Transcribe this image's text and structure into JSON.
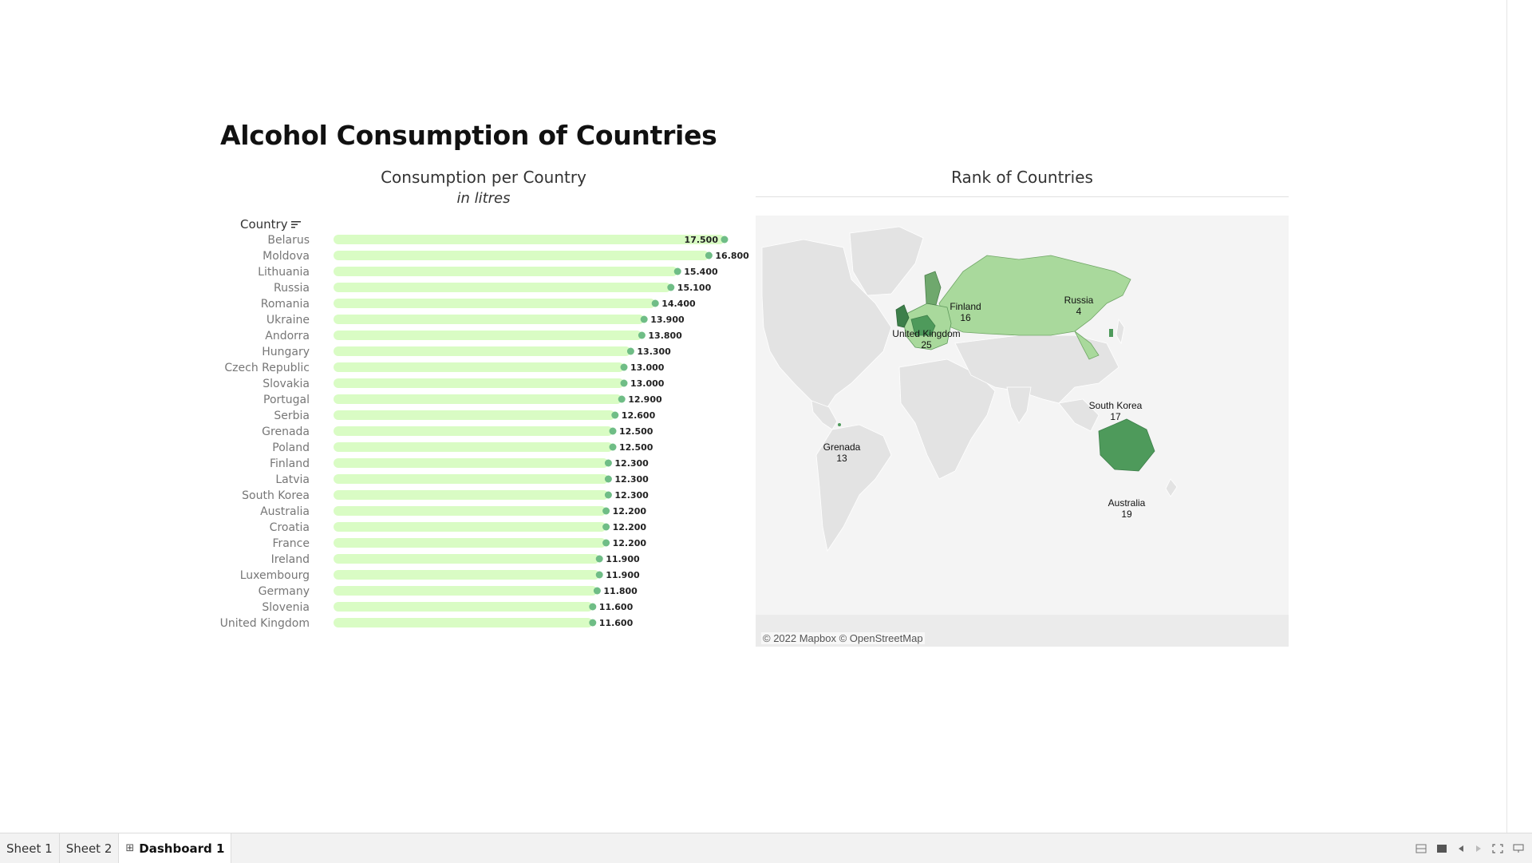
{
  "dashboard": {
    "title": "Alcohol Consumption of Countries"
  },
  "bar_panel": {
    "title": "Consumption per Country",
    "subtitle": "in litres",
    "column_header": "Country",
    "sort_icon": "sort-descending-icon",
    "colors": {
      "bar": "#d9fcc4",
      "dot": "#6fbd86",
      "label": "#777777",
      "value": "#222222"
    }
  },
  "chart_data": {
    "type": "bar",
    "title": "Consumption per Country",
    "subtitle": "in litres",
    "orientation": "horizontal",
    "categories": [
      "Belarus",
      "Moldova",
      "Lithuania",
      "Russia",
      "Romania",
      "Ukraine",
      "Andorra",
      "Hungary",
      "Czech Republic",
      "Slovakia",
      "Portugal",
      "Serbia",
      "Grenada",
      "Poland",
      "Finland",
      "Latvia",
      "South Korea",
      "Australia",
      "Croatia",
      "France",
      "Ireland",
      "Luxembourg",
      "Germany",
      "Slovenia",
      "United Kingdom"
    ],
    "values": [
      17.5,
      16.8,
      15.4,
      15.1,
      14.4,
      13.9,
      13.8,
      13.3,
      13.0,
      13.0,
      12.9,
      12.6,
      12.5,
      12.5,
      12.3,
      12.3,
      12.3,
      12.2,
      12.2,
      12.2,
      11.9,
      11.9,
      11.8,
      11.6,
      11.6
    ],
    "value_labels": [
      "17.500",
      "16.800",
      "15.400",
      "15.100",
      "14.400",
      "13.900",
      "13.800",
      "13.300",
      "13.000",
      "13.000",
      "12.900",
      "12.600",
      "12.500",
      "12.500",
      "12.300",
      "12.300",
      "12.300",
      "12.200",
      "12.200",
      "12.200",
      "11.900",
      "11.900",
      "11.800",
      "11.600",
      "11.600"
    ],
    "xlim": [
      0,
      17.5
    ],
    "grid": false,
    "sort": "descending"
  },
  "map_panel": {
    "title": "Rank of Countries",
    "credit": "© 2022 Mapbox © OpenStreetMap",
    "colors": {
      "land": "#e3e3e3",
      "ocean": "#f0f0f0",
      "border": "#ffffff",
      "light": "#a9d99c",
      "mid": "#7fbf7a",
      "dark": "#4e9a5b",
      "darkest": "#3d7f4a"
    },
    "labels": [
      {
        "name": "Russia",
        "rank": "4"
      },
      {
        "name": "Finland",
        "rank": "16"
      },
      {
        "name": "United Kingdom",
        "rank": "25"
      },
      {
        "name": "South Korea",
        "rank": "17"
      },
      {
        "name": "Grenada",
        "rank": "13"
      },
      {
        "name": "Australia",
        "rank": "19"
      }
    ]
  },
  "tabs": [
    {
      "label": "Sheet 1",
      "active": false
    },
    {
      "label": "Sheet 2",
      "active": false
    },
    {
      "label": "Dashboard 1",
      "active": true,
      "icon": "dashboard-grid-icon"
    }
  ],
  "toolbar_icons": [
    "grid-view-icon",
    "single-view-icon",
    "previous-icon",
    "next-icon",
    "fullscreen-icon",
    "presentation-icon"
  ]
}
